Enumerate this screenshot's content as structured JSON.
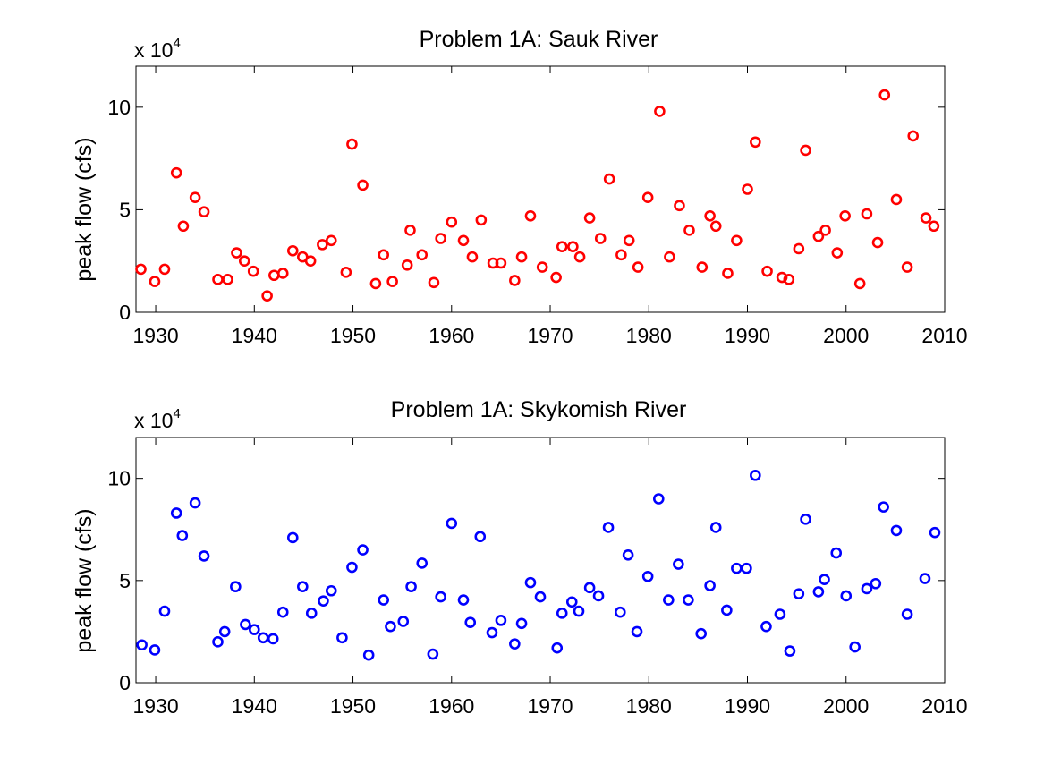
{
  "chart_data": [
    {
      "type": "scatter",
      "title": "Problem 1A:  Sauk River",
      "xlabel": "",
      "ylabel": "peak flow (cfs)",
      "multiplier_base": "x 10",
      "multiplier_exp": "4",
      "xlim": [
        1928,
        2010
      ],
      "ylim": [
        0,
        120000
      ],
      "xticks": [
        1930,
        1940,
        1950,
        1960,
        1970,
        1980,
        1990,
        2000,
        2010
      ],
      "yticks": [
        0,
        50000,
        100000
      ],
      "ytick_labels": [
        "0",
        "5",
        "10"
      ],
      "xtick_labels": [
        "1930",
        "1940",
        "1950",
        "1960",
        "1970",
        "1980",
        "1990",
        "2000",
        "2010"
      ],
      "marker": "circle-open",
      "color": "#ff0000",
      "grid": false,
      "legend": "none",
      "x": [
        1928.5,
        1929.9,
        1930.9,
        1932.1,
        1932.8,
        1934.0,
        1934.9,
        1936.3,
        1937.3,
        1938.2,
        1939.0,
        1939.9,
        1941.3,
        1942.0,
        1942.9,
        1943.9,
        1944.9,
        1945.7,
        1946.9,
        1947.8,
        1949.3,
        1949.9,
        1951.0,
        1952.3,
        1953.1,
        1954.0,
        1955.5,
        1955.8,
        1957.0,
        1958.2,
        1958.9,
        1960.0,
        1961.2,
        1962.1,
        1963.0,
        1964.2,
        1965.0,
        1966.4,
        1967.1,
        1968.0,
        1969.2,
        1970.6,
        1971.2,
        1972.3,
        1973.0,
        1974.0,
        1975.1,
        1976.0,
        1977.2,
        1978.0,
        1978.9,
        1979.9,
        1981.1,
        1982.1,
        1983.1,
        1984.1,
        1985.4,
        1986.2,
        1986.8,
        1988.0,
        1988.9,
        1990.0,
        1990.8,
        1992.0,
        1993.5,
        1994.2,
        1995.2,
        1995.9,
        1997.2,
        1997.9,
        1999.1,
        1999.9,
        2001.4,
        2002.1,
        2003.2,
        2003.9,
        2005.1,
        2006.2,
        2006.8,
        2008.1,
        2008.9
      ],
      "y": [
        21000,
        15000,
        21000,
        68000,
        42000,
        56000,
        49000,
        16000,
        16000,
        29000,
        25000,
        20000,
        8000,
        18000,
        19000,
        30000,
        27000,
        25000,
        33000,
        35000,
        19500,
        82000,
        62000,
        14000,
        28000,
        15000,
        23000,
        40000,
        28000,
        14500,
        36000,
        44000,
        35000,
        27000,
        45000,
        24000,
        24000,
        15500,
        27000,
        47000,
        22000,
        17000,
        32000,
        32000,
        27000,
        46000,
        36000,
        65000,
        28000,
        35000,
        22000,
        56000,
        98000,
        27000,
        52000,
        40000,
        22000,
        47000,
        42000,
        19000,
        35000,
        60000,
        83000,
        20000,
        17000,
        16000,
        31000,
        79000,
        37000,
        40000,
        29000,
        47000,
        14000,
        48000,
        34000,
        106000,
        55000,
        22000,
        86000,
        46000,
        42000
      ]
    },
    {
      "type": "scatter",
      "title": "Problem 1A:  Skykomish River",
      "xlabel": "",
      "ylabel": "peak flow (cfs)",
      "multiplier_base": "x 10",
      "multiplier_exp": "4",
      "xlim": [
        1928,
        2010
      ],
      "ylim": [
        0,
        120000
      ],
      "xticks": [
        1930,
        1940,
        1950,
        1960,
        1970,
        1980,
        1990,
        2000,
        2010
      ],
      "yticks": [
        0,
        50000,
        100000
      ],
      "ytick_labels": [
        "0",
        "5",
        "10"
      ],
      "xtick_labels": [
        "1930",
        "1940",
        "1950",
        "1960",
        "1970",
        "1980",
        "1990",
        "2000",
        "2010"
      ],
      "marker": "circle-open",
      "color": "#0000ff",
      "grid": false,
      "legend": "none",
      "x": [
        1928.6,
        1929.9,
        1930.9,
        1932.1,
        1932.7,
        1934.0,
        1934.9,
        1936.3,
        1937.0,
        1938.1,
        1939.1,
        1940.0,
        1940.9,
        1941.9,
        1942.9,
        1943.9,
        1944.9,
        1945.8,
        1947.0,
        1947.8,
        1948.9,
        1949.9,
        1951.0,
        1951.6,
        1953.1,
        1953.8,
        1955.1,
        1955.9,
        1957.0,
        1958.1,
        1958.9,
        1960.0,
        1961.2,
        1961.9,
        1962.9,
        1964.1,
        1965.0,
        1966.4,
        1967.1,
        1968.0,
        1969.0,
        1970.7,
        1971.2,
        1972.2,
        1972.9,
        1974.0,
        1974.9,
        1975.9,
        1977.1,
        1977.9,
        1978.8,
        1979.9,
        1981.0,
        1982.0,
        1983.0,
        1984.0,
        1985.3,
        1986.2,
        1986.8,
        1987.9,
        1988.9,
        1989.9,
        1990.8,
        1991.9,
        1993.3,
        1994.3,
        1995.2,
        1995.9,
        1997.2,
        1997.8,
        1999.0,
        2000.0,
        2000.9,
        2002.1,
        2003.0,
        2003.8,
        2005.1,
        2006.2,
        2008.0,
        2009.0
      ],
      "y": [
        18500,
        16000,
        35000,
        83000,
        72000,
        88000,
        62000,
        20000,
        25000,
        47000,
        28500,
        26000,
        22000,
        21500,
        34500,
        71000,
        47000,
        34000,
        40000,
        45000,
        22000,
        56500,
        65000,
        13500,
        40500,
        27500,
        30000,
        47000,
        58500,
        14000,
        42000,
        78000,
        40500,
        29500,
        71500,
        24500,
        30500,
        19000,
        29000,
        49000,
        42000,
        17000,
        34000,
        39500,
        35000,
        46500,
        42500,
        76000,
        34500,
        62500,
        25000,
        52000,
        90000,
        40500,
        58000,
        40500,
        24000,
        47500,
        76000,
        35500,
        56000,
        56000,
        101500,
        27500,
        33500,
        15500,
        43500,
        80000,
        44500,
        50500,
        63500,
        42500,
        17500,
        46000,
        48500,
        86000,
        74500,
        33500,
        51000,
        73500
      ]
    }
  ]
}
